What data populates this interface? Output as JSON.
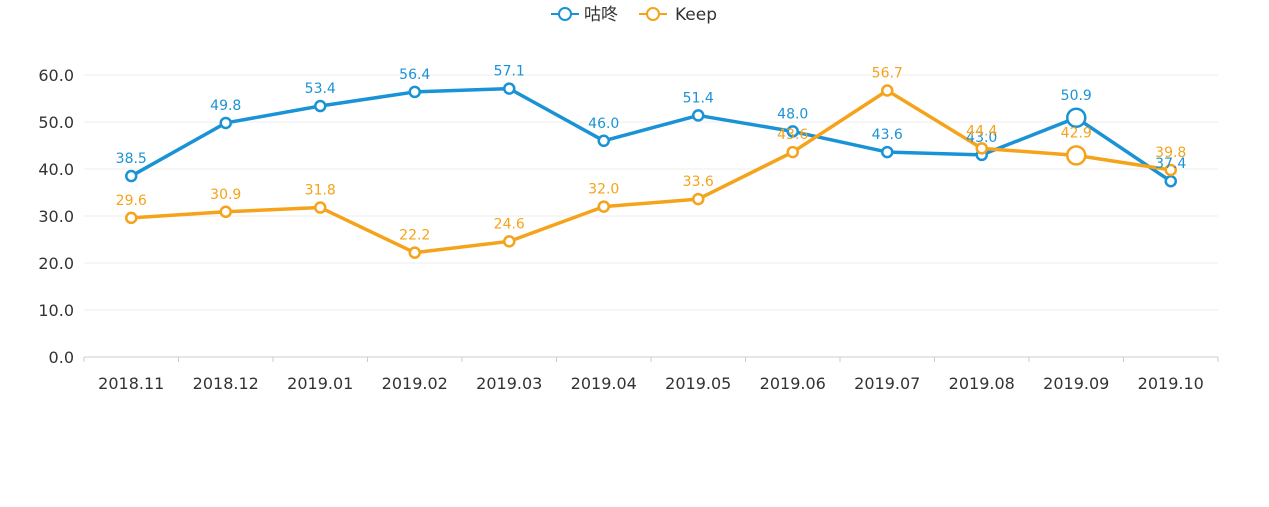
{
  "chart_data": {
    "type": "line",
    "title": "",
    "xlabel": "",
    "ylabel": "",
    "categories": [
      "2018.11",
      "2018.12",
      "2019.01",
      "2019.02",
      "2019.03",
      "2019.04",
      "2019.05",
      "2019.06",
      "2019.07",
      "2019.08",
      "2019.09",
      "2019.10"
    ],
    "ylim": [
      0,
      60
    ],
    "yticks": [
      "0.0",
      "10.0",
      "20.0",
      "30.0",
      "40.0",
      "50.0",
      "60.0"
    ],
    "grid": true,
    "legend_position": "top-center",
    "highlighted_category": "2019.09",
    "series": [
      {
        "name": "咕咚",
        "color": "#1a93d6",
        "values": [
          38.5,
          49.8,
          53.4,
          56.4,
          57.1,
          46.0,
          51.4,
          48.0,
          43.6,
          43.0,
          50.9,
          37.4
        ],
        "labels": [
          "38.5",
          "49.8",
          "53.4",
          "56.4",
          "57.1",
          "46.0",
          "51.4",
          "48.0",
          "43.6",
          "43.0",
          "50.9",
          "37.4"
        ]
      },
      {
        "name": "Keep",
        "color": "#f5a31a",
        "values": [
          29.6,
          30.9,
          31.8,
          22.2,
          24.6,
          32.0,
          33.6,
          43.6,
          56.7,
          44.4,
          42.9,
          39.8
        ],
        "labels": [
          "29.6",
          "30.9",
          "31.8",
          "22.2",
          "24.6",
          "32.0",
          "33.6",
          "43.6",
          "56.7",
          "44.4",
          "42.9",
          "39.8"
        ]
      }
    ]
  }
}
